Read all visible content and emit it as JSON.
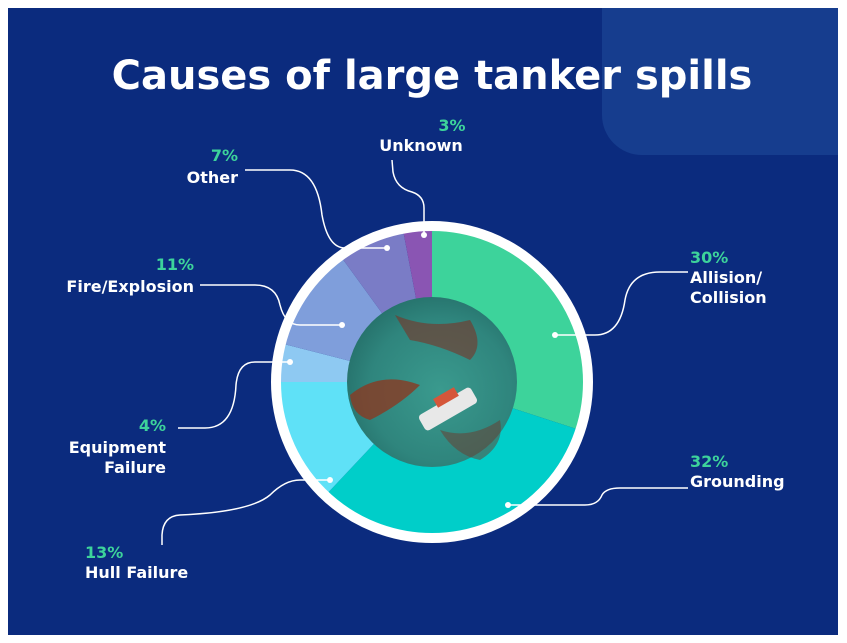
{
  "chart_data": {
    "type": "donut",
    "title": "Causes of large tanker spills",
    "categories": [
      "Allision/ Collision",
      "Grounding",
      "Hull Failure",
      "Equipment Failure",
      "Fire/Explosion",
      "Other",
      "Unknown"
    ],
    "values": [
      30,
      32,
      13,
      4,
      11,
      7,
      3
    ],
    "value_labels": [
      "30%",
      "32%",
      "13%",
      "4%",
      "11%",
      "7%",
      "3%"
    ],
    "colors": [
      "#3dd39b",
      "#00cec9",
      "#5fe1f7",
      "#8ec9f2",
      "#7f9edb",
      "#7a7cc6",
      "#8a55b3"
    ]
  }
}
